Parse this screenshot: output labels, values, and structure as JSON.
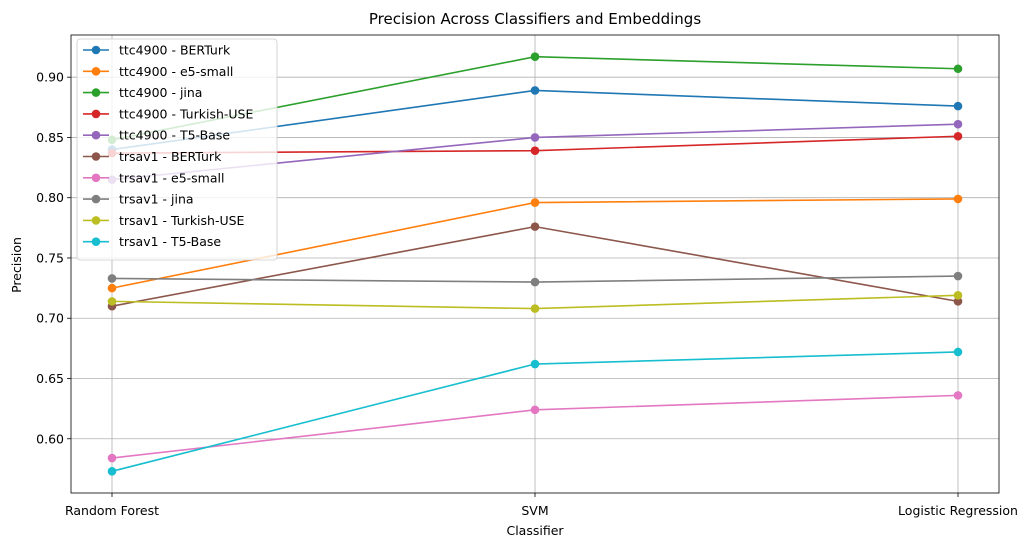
{
  "chart_data": {
    "type": "line",
    "title": "Precision Across Classifiers and Embeddings",
    "xlabel": "Classifier",
    "ylabel": "Precision",
    "categories": [
      "Random Forest",
      "SVM",
      "Logistic Regression"
    ],
    "ylim": [
      0.555,
      0.935
    ],
    "yticks": [
      0.6,
      0.65,
      0.7,
      0.75,
      0.8,
      0.85,
      0.9
    ],
    "ytick_labels": [
      "0.60",
      "0.65",
      "0.70",
      "0.75",
      "0.80",
      "0.85",
      "0.90"
    ],
    "grid": true,
    "legend_position": "top-left",
    "series": [
      {
        "name": "ttc4900 - BERTurk",
        "color": "#1f77b4",
        "values": [
          0.84,
          0.889,
          0.876
        ]
      },
      {
        "name": "ttc4900 - e5-small",
        "color": "#ff7f0e",
        "values": [
          0.725,
          0.796,
          0.799
        ]
      },
      {
        "name": "ttc4900 - jina",
        "color": "#2ca02c",
        "values": [
          0.848,
          0.917,
          0.907
        ]
      },
      {
        "name": "ttc4900 - Turkish-USE",
        "color": "#d62728",
        "values": [
          0.837,
          0.839,
          0.851
        ]
      },
      {
        "name": "ttc4900 - T5-Base",
        "color": "#9467bd",
        "values": [
          0.815,
          0.85,
          0.861
        ]
      },
      {
        "name": "trsav1 - BERTurk",
        "color": "#8c564b",
        "values": [
          0.71,
          0.776,
          0.714
        ]
      },
      {
        "name": "trsav1 - e5-small",
        "color": "#e377c2",
        "values": [
          0.584,
          0.624,
          0.636
        ]
      },
      {
        "name": "trsav1 - jina",
        "color": "#7f7f7f",
        "values": [
          0.733,
          0.73,
          0.735
        ]
      },
      {
        "name": "trsav1 - Turkish-USE",
        "color": "#bcbd22",
        "values": [
          0.714,
          0.708,
          0.719
        ]
      },
      {
        "name": "trsav1 - T5-Base",
        "color": "#17becf",
        "values": [
          0.573,
          0.662,
          0.672
        ]
      }
    ]
  }
}
